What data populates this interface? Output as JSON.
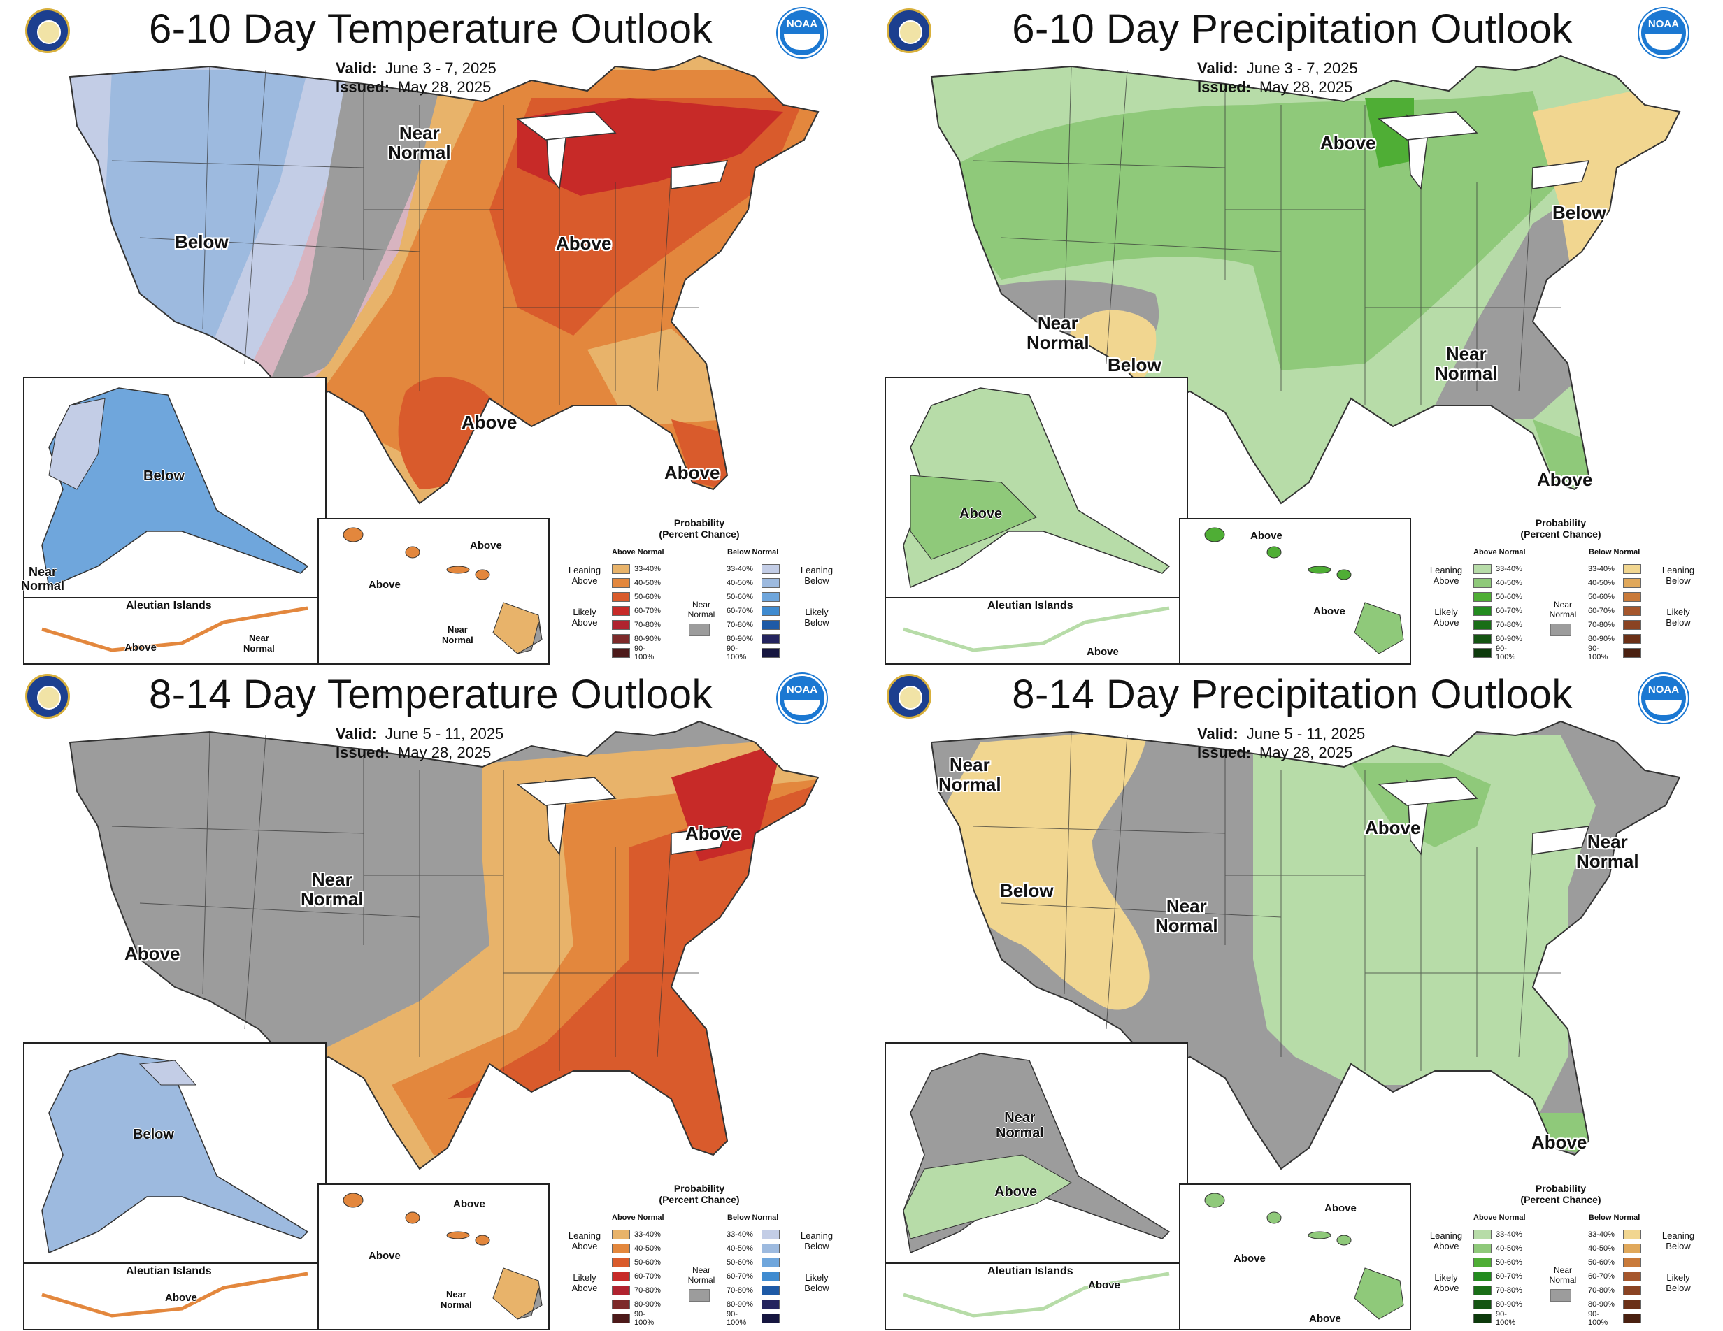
{
  "colors": {
    "above": [
      "#e8b36a",
      "#e3873d",
      "#d95b2c",
      "#c72a28",
      "#b0232f",
      "#7d2a2a",
      "#4d1a1a"
    ],
    "below": [
      "#c3cde6",
      "#9dbadf",
      "#6fa6dc",
      "#3f8bd0",
      "#1e5aa6",
      "#24245e",
      "#161640"
    ],
    "wet": [
      "#b7dca8",
      "#8fc97a",
      "#4fae35",
      "#238b1f",
      "#1a6e17",
      "#145412",
      "#0d3a0c"
    ],
    "dry": [
      "#f1d690",
      "#e0a85b",
      "#c97a3a",
      "#a5562c",
      "#8a4322",
      "#6b3017",
      "#4a2010"
    ],
    "near": "#9c9c9c"
  },
  "panels": [
    {
      "id": "temp-6-10",
      "variable": "temperature",
      "title": "6-10 Day Temperature Outlook",
      "valid_label": "Valid:",
      "valid_value": "June 3 - 7, 2025",
      "issued_label": "Issued:",
      "issued_value": "May 28, 2025",
      "labels": [
        {
          "name": "label-near-normal-plains",
          "text": "Near\nNormal"
        },
        {
          "name": "label-below-west",
          "text": "Below"
        },
        {
          "name": "label-above-great-lakes",
          "text": "Above"
        },
        {
          "name": "label-above-texas",
          "text": "Above"
        },
        {
          "name": "label-above-florida",
          "text": "Above"
        },
        {
          "name": "label-below-alaska",
          "text": "Below"
        },
        {
          "name": "label-near-normal-alaska",
          "text": "Near\nNormal"
        },
        {
          "name": "label-above-aleutian",
          "text": "Above"
        },
        {
          "name": "label-near-normal-aleutian",
          "text": "Near\nNormal"
        },
        {
          "name": "label-above-hawaii-1",
          "text": "Above"
        },
        {
          "name": "label-above-hawaii-2",
          "text": "Above"
        },
        {
          "name": "label-near-normal-hawaii",
          "text": "Near\nNormal"
        }
      ],
      "aleutian_title": "Aleutian Islands"
    },
    {
      "id": "precip-6-10",
      "variable": "precipitation",
      "title": "6-10 Day Precipitation Outlook",
      "valid_label": "Valid:",
      "valid_value": "June 3 - 7, 2025",
      "issued_label": "Issued:",
      "issued_value": "May 28, 2025",
      "labels": [
        {
          "name": "label-above-minnesota",
          "text": "Above"
        },
        {
          "name": "label-below-northeast",
          "text": "Below"
        },
        {
          "name": "label-near-normal-southwest",
          "text": "Near\nNormal"
        },
        {
          "name": "label-below-arizona",
          "text": "Below"
        },
        {
          "name": "label-near-normal-southeast",
          "text": "Near\nNormal"
        },
        {
          "name": "label-above-florida",
          "text": "Above"
        },
        {
          "name": "label-above-alaska",
          "text": "Above"
        },
        {
          "name": "label-above-aleutian",
          "text": "Above"
        },
        {
          "name": "label-above-hawaii-1",
          "text": "Above"
        },
        {
          "name": "label-above-hawaii-2",
          "text": "Above"
        }
      ],
      "aleutian_title": "Aleutian Islands"
    },
    {
      "id": "temp-8-14",
      "variable": "temperature",
      "title": "8-14 Day Temperature Outlook",
      "valid_label": "Valid:",
      "valid_value": "June 5 - 11, 2025",
      "issued_label": "Issued:",
      "issued_value": "May 28, 2025",
      "labels": [
        {
          "name": "label-near-normal-west",
          "text": "Near\nNormal"
        },
        {
          "name": "label-above-california",
          "text": "Above"
        },
        {
          "name": "label-above-northeast",
          "text": "Above"
        },
        {
          "name": "label-below-alaska",
          "text": "Below"
        },
        {
          "name": "label-above-aleutian",
          "text": "Above"
        },
        {
          "name": "label-above-hawaii-1",
          "text": "Above"
        },
        {
          "name": "label-above-hawaii-2",
          "text": "Above"
        },
        {
          "name": "label-near-normal-hawaii",
          "text": "Near\nNormal"
        }
      ],
      "aleutian_title": "Aleutian Islands"
    },
    {
      "id": "precip-8-14",
      "variable": "precipitation",
      "title": "8-14 Day Precipitation Outlook",
      "valid_label": "Valid:",
      "valid_value": "June 5 - 11, 2025",
      "issued_label": "Issued:",
      "issued_value": "May 28, 2025",
      "labels": [
        {
          "name": "label-near-normal-northwest",
          "text": "Near\nNormal"
        },
        {
          "name": "label-below-west",
          "text": "Below"
        },
        {
          "name": "label-near-normal-rockies",
          "text": "Near\nNormal"
        },
        {
          "name": "label-above-great-lakes",
          "text": "Above"
        },
        {
          "name": "label-near-normal-northeast",
          "text": "Near\nNormal"
        },
        {
          "name": "label-above-florida",
          "text": "Above"
        },
        {
          "name": "label-near-normal-alaska",
          "text": "Near\nNormal"
        },
        {
          "name": "label-above-alaska",
          "text": "Above"
        },
        {
          "name": "label-above-aleutian",
          "text": "Above"
        },
        {
          "name": "label-above-hawaii-1",
          "text": "Above"
        },
        {
          "name": "label-above-hawaii-2",
          "text": "Above"
        },
        {
          "name": "label-above-hawaii-3",
          "text": "Above"
        }
      ],
      "aleutian_title": "Aleutian Islands"
    }
  ],
  "legend": {
    "title": "Probability\n(Percent Chance)",
    "temp": {
      "left_head": "Above Normal",
      "right_head": "Below Normal",
      "leaning_left": "Leaning\nAbove",
      "likely_left": "Likely\nAbove",
      "leaning_right": "Leaning\nBelow",
      "likely_right": "Likely\nBelow"
    },
    "precip": {
      "left_head": "Above Normal",
      "right_head": "Below Normal",
      "leaning_left": "Leaning\nAbove",
      "likely_left": "Likely\nAbove",
      "leaning_right": "Leaning\nBelow",
      "likely_right": "Likely\nBelow"
    },
    "near_label": "Near\nNormal",
    "ranges": [
      "33-40%",
      "40-50%",
      "50-60%",
      "60-70%",
      "70-80%",
      "80-90%",
      "90-100%"
    ]
  },
  "brand": {
    "noaa": "NOAA"
  }
}
